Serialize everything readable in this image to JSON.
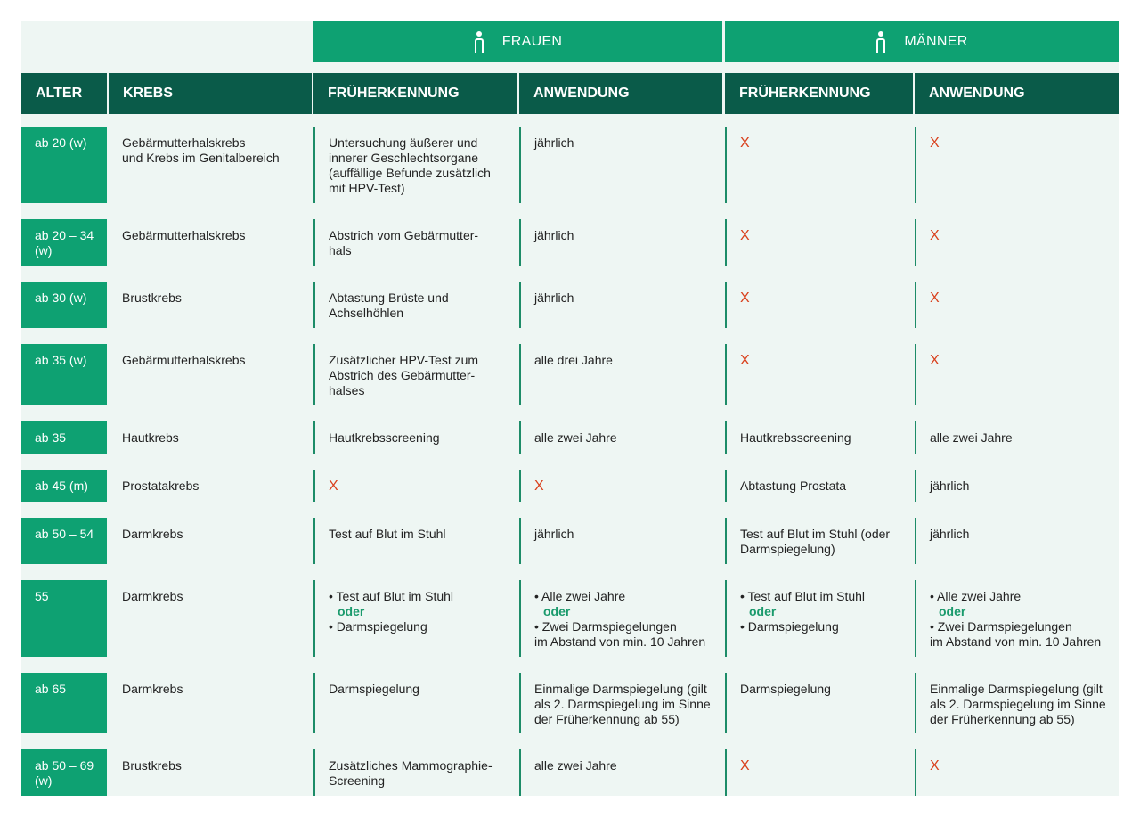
{
  "groups": {
    "frauen": "FRAUEN",
    "maenner": "MÄNNER"
  },
  "headers": [
    "ALTER",
    "KREBS",
    "FRÜHERKENNUNG",
    "ANWENDUNG",
    "FRÜHERKENNUNG",
    "ANWENDUNG"
  ],
  "colors": {
    "green": "#0ea172",
    "dark_green": "#0a5b49",
    "x_red": "#d9401c",
    "background": "#eef6f3"
  },
  "rows": [
    [
      "ab 20 (w)",
      "Gebärmutterhalskrebs\nund Krebs im Genitalbereich",
      "Untersuchung äußerer und\ninnerer Geschlechtsorgane\n(auffällige Befunde zusätzlich\nmit HPV-Test)",
      "jährlich",
      "X",
      "X"
    ],
    [
      "ab 20 – 34\n(w)",
      "Gebärmutterhalskrebs",
      "Abstrich vom Gebärmutter-\nhals",
      "jährlich",
      "X",
      "X"
    ],
    [
      "ab 30 (w)",
      "Brustkrebs",
      "Abtastung Brüste und\nAchselhöhlen",
      "jährlich",
      "X",
      "X"
    ],
    [
      "ab 35 (w)",
      "Gebärmutterhalskrebs",
      "Zusätzlicher HPV-Test zum\nAbstrich des Gebärmutter-\nhalses",
      "alle drei Jahre",
      "X",
      "X"
    ],
    [
      "ab 35",
      "Hautkrebs",
      "Hautkrebsscreening",
      "alle zwei Jahre",
      "Hautkrebsscreening",
      "alle zwei Jahre"
    ],
    [
      "ab 45 (m)",
      "Prostatakrebs",
      "X",
      "X",
      "Abtastung Prostata",
      "jährlich"
    ],
    [
      "ab 50 – 54",
      "Darmkrebs",
      "Test auf Blut im Stuhl",
      "jährlich",
      "Test auf Blut im Stuhl (oder\nDarmspiegelung)",
      "jährlich"
    ],
    [
      "55",
      "Darmkrebs",
      "• Test auf Blut im Stuhl|oder|• Darmspiegelung",
      "• Alle zwei Jahre|oder|• Zwei Darmspiegelungen\nim Abstand von min. 10 Jahren",
      "• Test auf Blut im Stuhl|oder|• Darmspiegelung",
      "• Alle zwei Jahre|oder|• Zwei Darmspiegelungen\nim Abstand von min. 10 Jahren"
    ],
    [
      "ab 65",
      "Darmkrebs",
      "Darmspiegelung",
      "Einmalige Darmspiegelung (gilt\nals 2. Darmspiegelung im Sinne\nder Früherkennung ab 55)",
      "Darmspiegelung",
      "Einmalige Darmspiegelung (gilt\nals 2. Darmspiegelung im Sinne\nder Früherkennung ab 55)"
    ],
    [
      "ab 50 – 69\n(w)",
      "Brustkrebs",
      "Zusätzliches Mammographie-\nScreening",
      "alle zwei Jahre",
      "X",
      "X"
    ]
  ]
}
